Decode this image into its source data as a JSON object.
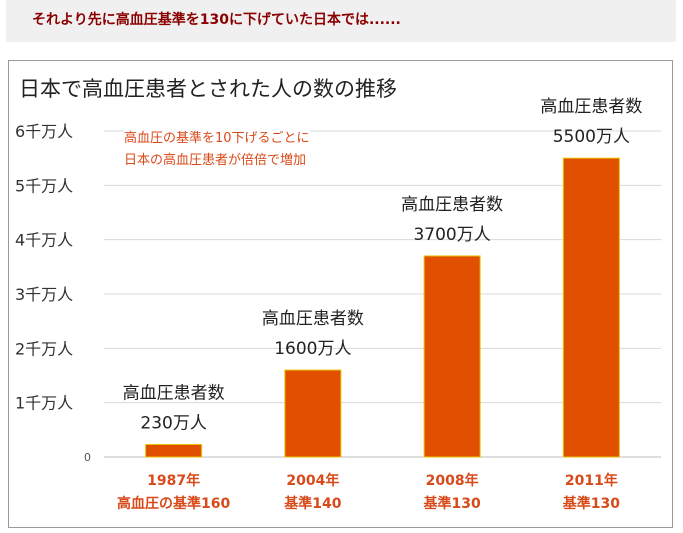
{
  "headline": "それより先に高血圧基準を130に下げていた日本では......",
  "chart_data": {
    "type": "bar",
    "title": "日本で高血圧患者とされた人の数の推移",
    "annotation": [
      "高血圧の基準を10下げるごとに",
      "日本の高血圧患者が倍倍で増加"
    ],
    "y_tick_labels": [
      "0",
      "1千万人",
      "2千万人",
      "3千万人",
      "4千万人",
      "5千万人",
      "6千万人"
    ],
    "ylim": [
      0,
      6000
    ],
    "y_unit": "万人",
    "grid": true,
    "bar_color": "#e05000",
    "bar_edge_color": "#e8c200",
    "label_color": "#d84a1a",
    "categories": [
      {
        "year": "1987年",
        "standard": "高血圧の基準160"
      },
      {
        "year": "2004年",
        "standard": "基準140"
      },
      {
        "year": "2008年",
        "standard": "基準130"
      },
      {
        "year": "2011年",
        "standard": "基準130"
      }
    ],
    "values": [
      230,
      1600,
      3700,
      5500
    ],
    "value_labels": [
      {
        "title": "高血圧患者数",
        "value": "230万人"
      },
      {
        "title": "高血圧患者数",
        "value": "1600万人"
      },
      {
        "title": "高血圧患者数",
        "value": "3700万人"
      },
      {
        "title": "高血圧患者数",
        "value": "5500万人"
      }
    ]
  }
}
